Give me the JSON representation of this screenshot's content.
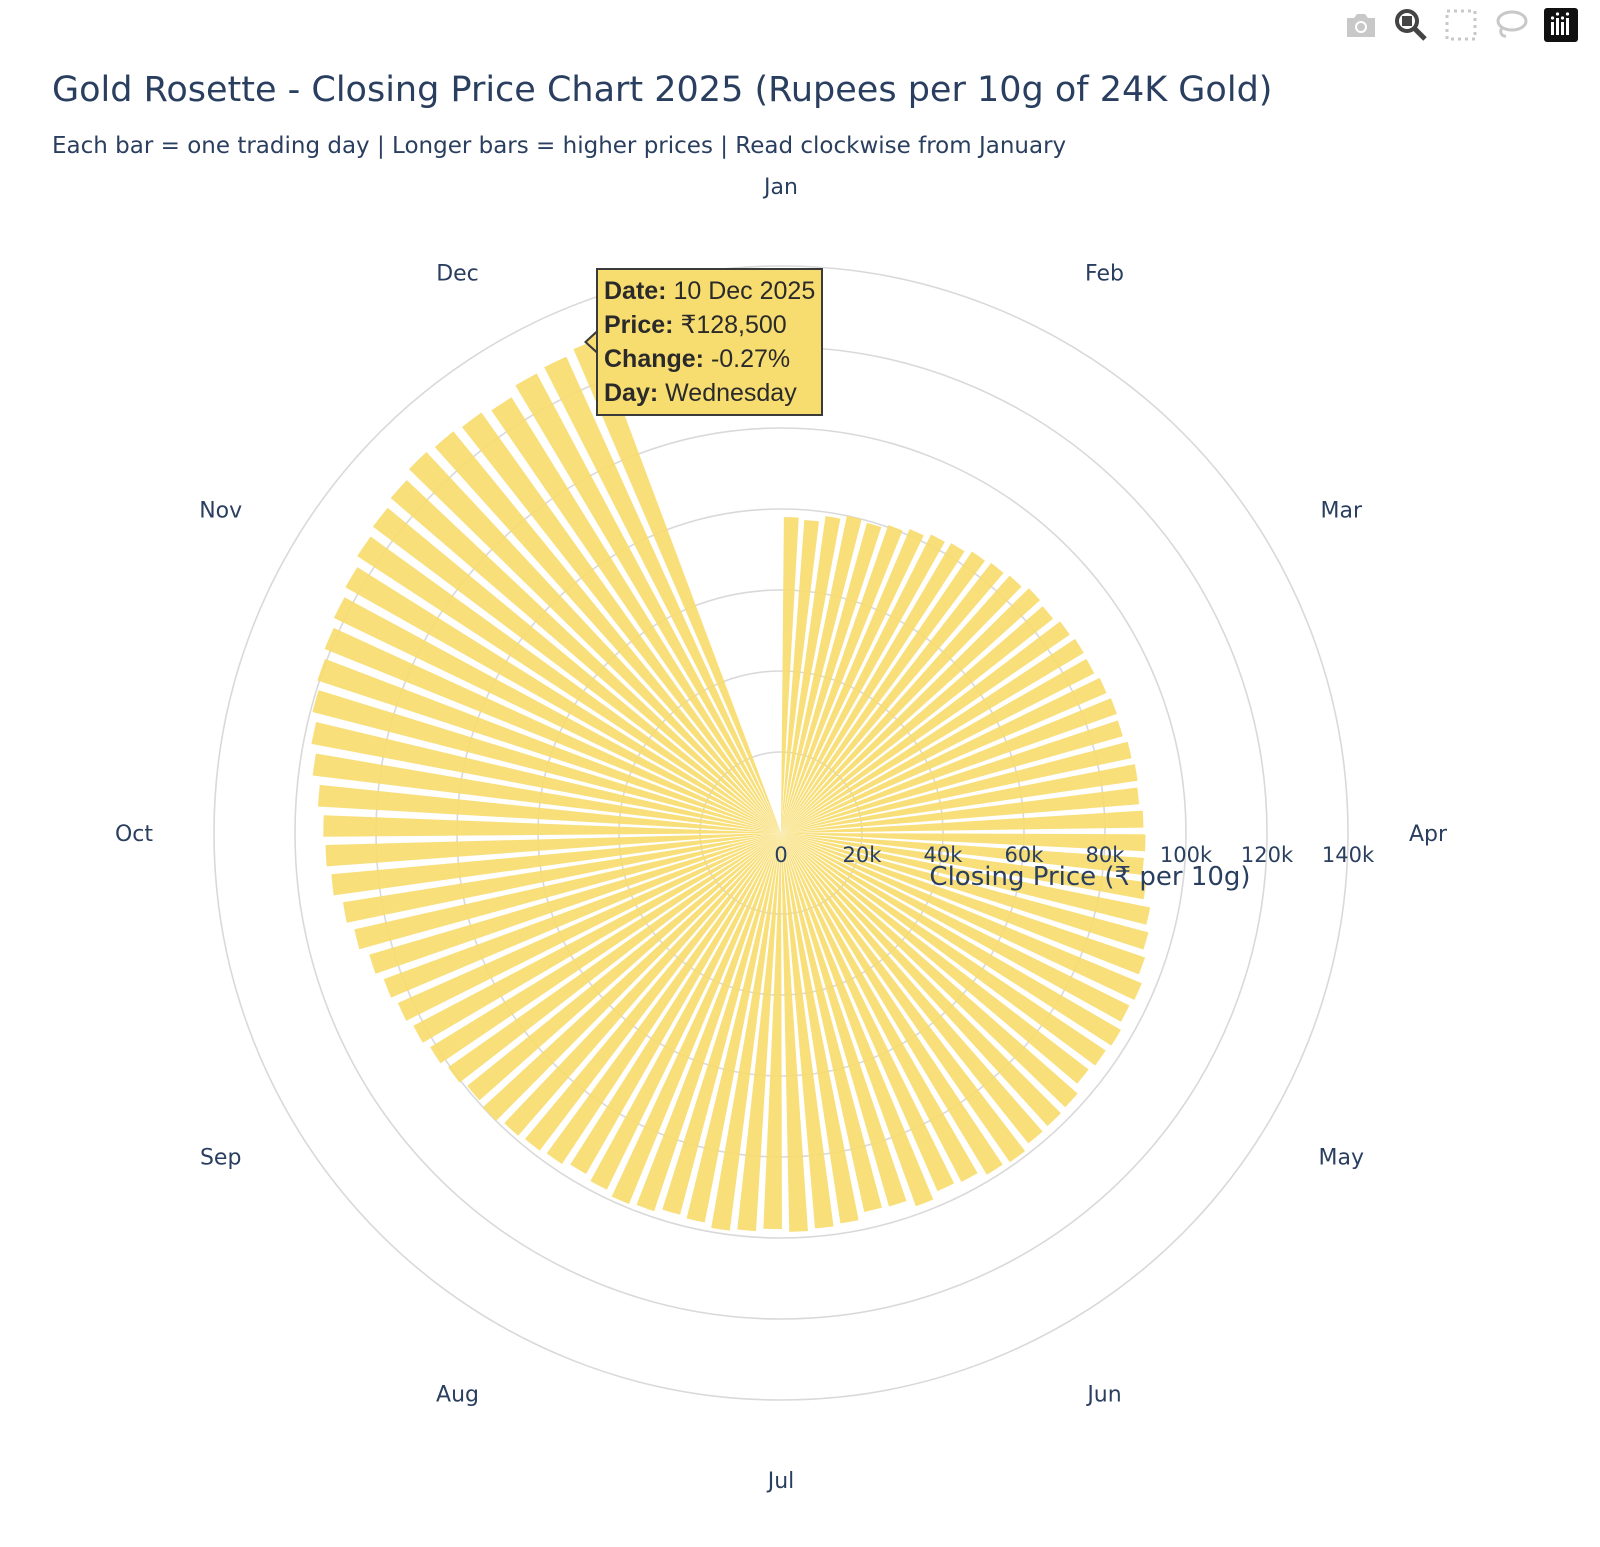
{
  "modebar": {
    "icons": [
      "camera-icon",
      "zoom-icon",
      "box-select-icon",
      "lasso-select-icon",
      "plotly-logo-icon"
    ]
  },
  "chart_data": {
    "type": "barpolar",
    "title": "Gold Rosette - Closing Price Chart 2025 (Rupees per 10g of 24K Gold)",
    "subtitle": "Each bar = one trading day | Longer bars = higher prices | Read clockwise from January",
    "radial_axis": {
      "title": "Closing Price (₹ per 10g)",
      "tick_labels": [
        "0",
        "20k",
        "40k",
        "60k",
        "80k",
        "100k",
        "120k",
        "140k"
      ],
      "tick_values": [
        0,
        20000,
        40000,
        60000,
        80000,
        100000,
        120000,
        140000
      ],
      "range": [
        0,
        140000
      ]
    },
    "angular_axis": {
      "direction": "clockwise",
      "rotation": 90,
      "tick_labels": [
        "Jan",
        "Feb",
        "Mar",
        "Apr",
        "May",
        "Jun",
        "Jul",
        "Aug",
        "Sep",
        "Oct",
        "Nov",
        "Dec"
      ]
    },
    "grid": true,
    "bar_color": "#f7dc6f",
    "series": [
      {
        "values": [
          78000,
          77500,
          79000,
          80000,
          79500,
          80500,
          81500,
          82500,
          83000,
          84000,
          84500,
          85000,
          86000,
          85500,
          86500,
          87000,
          86800,
          87500,
          88000,
          87700,
          88500,
          89000,
          88700,
          89500,
          90000,
          89800,
          91000,
          93000,
          94000,
          95000,
          96500,
          96000,
          97000,
          96500,
          95800,
          97500,
          97800,
          98000,
          99000,
          98500,
          97000,
          96500,
          98000,
          96000,
          95800,
          97500,
          98000,
          98500,
          97800,
          98500,
          99000,
          98000,
          97500,
          98500,
          99000,
          98000,
          97000,
          98000,
          98500,
          99000,
          100000,
          99500,
          100500,
          101500,
          102500,
          103500,
          104500,
          106000,
          108000,
          109500,
          111500,
          112500,
          113000,
          114500,
          116500,
          118000,
          119500,
          120500,
          121500,
          122500,
          123500,
          125000,
          126000,
          127000,
          128500,
          128000,
          127500,
          126500,
          128500,
          129000,
          130000
        ]
      }
    ],
    "tooltip": {
      "date_label": "Date:",
      "date": "10 Dec 2025",
      "price_label": "Price:",
      "price": "₹128,500",
      "change_label": "Change:",
      "change": "-0.27%",
      "day_label": "Day:",
      "day": "Wednesday"
    }
  }
}
